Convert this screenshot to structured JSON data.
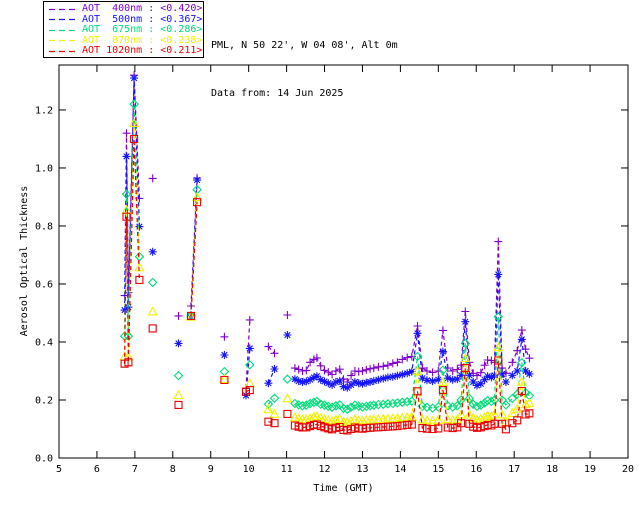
{
  "header": {
    "location_line": "PML, N 50 22', W 04 08', Alt 0m",
    "data_line": "Data from: 14 Jun 2025"
  },
  "legend": {
    "position": "top-left",
    "entries": [
      {
        "label": "AOT  400nm",
        "mean": "<0.420>",
        "color": "#8000CC"
      },
      {
        "label": "AOT  500nm",
        "mean": "<0.367>",
        "color": "#1414FF"
      },
      {
        "label": "AOT  675nm",
        "mean": "<0.286>",
        "color": "#00DC78"
      },
      {
        "label": "AOT  870nm",
        "mean": "<0.238>",
        "color": "#F0F000"
      },
      {
        "label": "AOT 1020nm",
        "mean": "<0.211>",
        "color": "#EA0000"
      }
    ]
  },
  "chart_data": {
    "type": "line",
    "title": "",
    "xlabel": "Time (GMT)",
    "ylabel": "Aerosol Optical Thickness",
    "xlim": [
      5,
      20
    ],
    "ylim": [
      0,
      1.355
    ],
    "xticks": [
      5,
      6,
      7,
      8,
      9,
      10,
      11,
      12,
      13,
      14,
      15,
      16,
      17,
      18,
      19,
      20
    ],
    "yticks": [
      0.0,
      0.2,
      0.4,
      0.6,
      0.8,
      1.0,
      1.2
    ],
    "grid": false,
    "line_style": "dashed",
    "gap_threshold_hours": 0.18,
    "x": [
      6.73,
      6.78,
      6.83,
      6.98,
      7.12,
      7.47,
      8.15,
      8.48,
      8.64,
      9.36,
      9.93,
      10.03,
      10.52,
      10.68,
      11.02,
      11.22,
      11.32,
      11.42,
      11.52,
      11.62,
      11.72,
      11.8,
      11.9,
      12.0,
      12.1,
      12.2,
      12.3,
      12.4,
      12.5,
      12.6,
      12.7,
      12.8,
      12.9,
      13.0,
      13.1,
      13.2,
      13.3,
      13.42,
      13.55,
      13.67,
      13.8,
      13.92,
      14.05,
      14.18,
      14.3,
      14.45,
      14.58,
      14.7,
      14.85,
      15.0,
      15.12,
      15.25,
      15.38,
      15.5,
      15.6,
      15.71,
      15.82,
      15.92,
      16.02,
      16.12,
      16.22,
      16.3,
      16.4,
      16.48,
      16.58,
      16.68,
      16.78,
      16.95,
      17.08,
      17.2,
      17.3,
      17.4
    ],
    "series": [
      {
        "name": "AOT 400nm",
        "wavelength_nm": 400,
        "mean": "<0.420>",
        "color": "#8000CC",
        "marker": "plus",
        "values": [
          0.56,
          1.12,
          0.57,
          1.32,
          0.895,
          0.964,
          0.49,
          0.524,
          0.965,
          0.418,
          0.24,
          0.476,
          0.384,
          0.361,
          0.493,
          0.31,
          0.305,
          0.3,
          0.302,
          0.33,
          0.34,
          0.345,
          0.318,
          0.302,
          0.296,
          0.288,
          0.3,
          0.306,
          0.272,
          0.262,
          0.284,
          0.3,
          0.298,
          0.3,
          0.304,
          0.308,
          0.31,
          0.314,
          0.316,
          0.32,
          0.326,
          0.33,
          0.34,
          0.346,
          0.35,
          0.455,
          0.31,
          0.3,
          0.295,
          0.3,
          0.44,
          0.31,
          0.3,
          0.305,
          0.32,
          0.505,
          0.33,
          0.292,
          0.284,
          0.294,
          0.32,
          0.338,
          0.336,
          0.33,
          0.746,
          0.31,
          0.292,
          0.33,
          0.37,
          0.441,
          0.375,
          0.344
        ]
      },
      {
        "name": "AOT 500nm",
        "wavelength_nm": 500,
        "mean": "<0.367>",
        "color": "#1414FF",
        "marker": "asterisk",
        "values": [
          0.51,
          1.04,
          0.52,
          1.31,
          0.798,
          0.711,
          0.395,
          0.492,
          0.958,
          0.355,
          0.216,
          0.378,
          0.258,
          0.307,
          0.424,
          0.272,
          0.265,
          0.262,
          0.264,
          0.27,
          0.278,
          0.282,
          0.27,
          0.264,
          0.258,
          0.252,
          0.262,
          0.266,
          0.246,
          0.242,
          0.252,
          0.262,
          0.258,
          0.256,
          0.26,
          0.262,
          0.266,
          0.27,
          0.274,
          0.278,
          0.28,
          0.284,
          0.288,
          0.292,
          0.298,
          0.43,
          0.275,
          0.268,
          0.265,
          0.27,
          0.367,
          0.275,
          0.27,
          0.272,
          0.285,
          0.47,
          0.285,
          0.262,
          0.25,
          0.256,
          0.27,
          0.282,
          0.278,
          0.285,
          0.633,
          0.29,
          0.262,
          0.285,
          0.3,
          0.409,
          0.3,
          0.29
        ]
      },
      {
        "name": "AOT 675nm",
        "wavelength_nm": 675,
        "mean": "<0.286>",
        "color": "#00DC78",
        "marker": "diamond",
        "values": [
          0.42,
          0.91,
          0.42,
          1.22,
          0.694,
          0.605,
          0.284,
          0.49,
          0.925,
          0.298,
          null,
          0.321,
          0.186,
          0.206,
          0.272,
          0.188,
          0.183,
          0.18,
          0.182,
          0.188,
          0.192,
          0.195,
          0.186,
          0.182,
          0.178,
          0.175,
          0.18,
          0.183,
          0.171,
          0.168,
          0.175,
          0.182,
          0.178,
          0.176,
          0.178,
          0.18,
          0.182,
          0.184,
          0.185,
          0.187,
          0.188,
          0.19,
          0.192,
          0.194,
          0.196,
          0.35,
          0.178,
          0.175,
          0.172,
          0.176,
          0.303,
          0.18,
          0.176,
          0.18,
          0.2,
          0.395,
          0.205,
          0.185,
          0.178,
          0.182,
          0.19,
          0.198,
          0.195,
          0.2,
          0.487,
          0.2,
          0.183,
          0.205,
          0.22,
          0.329,
          0.225,
          0.215
        ]
      },
      {
        "name": "AOT 870nm",
        "wavelength_nm": 870,
        "mean": "<0.238>",
        "color": "#F0F000",
        "marker": "triangle",
        "values": [
          0.35,
          0.855,
          0.35,
          1.155,
          0.657,
          0.505,
          0.217,
          0.487,
          0.9,
          0.272,
          null,
          0.258,
          0.168,
          0.152,
          0.206,
          0.14,
          0.136,
          0.133,
          0.134,
          0.138,
          0.142,
          0.144,
          0.138,
          0.134,
          0.131,
          0.128,
          0.132,
          0.135,
          0.125,
          0.123,
          0.128,
          0.133,
          0.13,
          0.129,
          0.131,
          0.132,
          0.133,
          0.134,
          0.135,
          0.136,
          0.137,
          0.138,
          0.139,
          0.141,
          0.142,
          0.3,
          0.132,
          0.13,
          0.129,
          0.131,
          0.262,
          0.134,
          0.131,
          0.133,
          0.15,
          0.344,
          0.15,
          0.138,
          0.132,
          0.135,
          0.14,
          0.146,
          0.144,
          0.15,
          0.382,
          0.15,
          0.124,
          0.155,
          0.17,
          0.263,
          0.185,
          0.19
        ]
      },
      {
        "name": "AOT 1020nm",
        "wavelength_nm": 1020,
        "mean": "<0.211>",
        "color": "#EA0000",
        "marker": "square",
        "values": [
          0.325,
          0.832,
          0.33,
          1.1,
          0.614,
          0.447,
          0.183,
          0.49,
          0.882,
          0.269,
          0.229,
          0.234,
          0.125,
          0.12,
          0.152,
          0.112,
          0.108,
          0.105,
          0.106,
          0.11,
          0.114,
          0.116,
          0.11,
          0.106,
          0.102,
          0.099,
          0.104,
          0.107,
          0.097,
          0.095,
          0.1,
          0.105,
          0.102,
          0.101,
          0.103,
          0.104,
          0.105,
          0.106,
          0.107,
          0.108,
          0.109,
          0.11,
          0.112,
          0.114,
          0.115,
          0.23,
          0.103,
          0.101,
          0.1,
          0.102,
          0.234,
          0.105,
          0.103,
          0.106,
          0.12,
          0.31,
          0.118,
          0.108,
          0.104,
          0.106,
          0.11,
          0.114,
          0.112,
          0.118,
          0.336,
          0.118,
          0.099,
          0.12,
          0.13,
          0.231,
          0.15,
          0.154
        ]
      }
    ]
  }
}
